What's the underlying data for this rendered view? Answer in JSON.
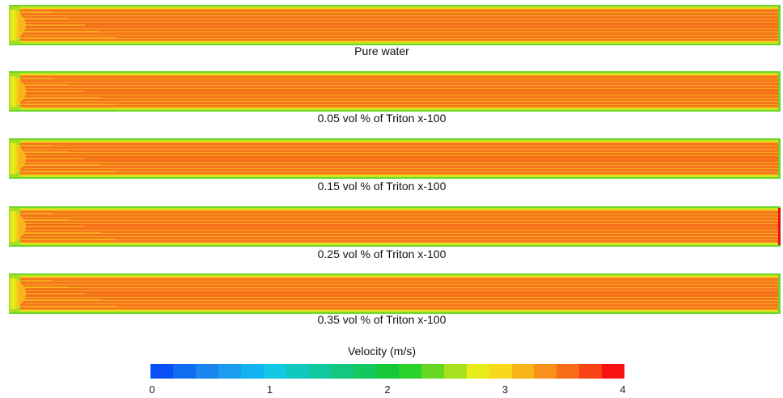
{
  "panels": [
    {
      "label": "Pure water",
      "right_edge": "green"
    },
    {
      "label": "0.05 vol % of Triton x-100",
      "right_edge": "green"
    },
    {
      "label": "0.15 vol % of Triton x-100",
      "right_edge": "green"
    },
    {
      "label": "0.25 vol % of Triton x-100",
      "right_edge": "red"
    },
    {
      "label": "0.35 vol % of Triton x-100",
      "right_edge": "green"
    }
  ],
  "colorbar": {
    "title": "Velocity (m/s)",
    "ticks": [
      "0",
      "1",
      "2",
      "3",
      "4"
    ],
    "colors": [
      "#0a4ff5",
      "#0f6cf0",
      "#1a85ee",
      "#1a9df0",
      "#12b4f0",
      "#12c8e6",
      "#10c8c0",
      "#10c8a0",
      "#12c880",
      "#14c860",
      "#14c838",
      "#2ad22a",
      "#66d824",
      "#a6e01e",
      "#e8ec18",
      "#f8d81a",
      "#f8b41a",
      "#f8901a",
      "#f86c18",
      "#f84414",
      "#f81010"
    ]
  }
}
